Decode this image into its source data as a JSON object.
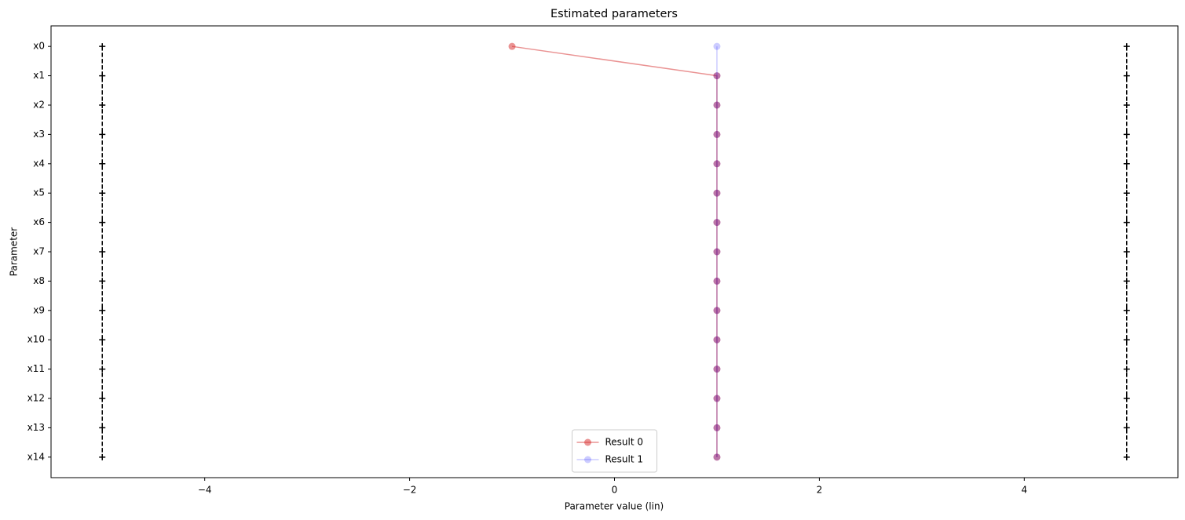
{
  "chart_data": {
    "type": "line",
    "orientation": "horizontal",
    "title": "Estimated parameters",
    "x_label": "Parameter value (lin)",
    "y_label": "Parameter",
    "categories": [
      "x0",
      "x1",
      "x2",
      "x3",
      "x4",
      "x5",
      "x6",
      "x7",
      "x8",
      "x9",
      "x10",
      "x11",
      "x12",
      "x13",
      "x14"
    ],
    "series": [
      {
        "name": "Result 0",
        "color": "#d62728",
        "alpha": 0.5,
        "values": [
          -1,
          1,
          1,
          1,
          1,
          1,
          1,
          1,
          1,
          1,
          1,
          1,
          1,
          1,
          1
        ]
      },
      {
        "name": "Result 1",
        "color": "#0000ff",
        "alpha": 0.2,
        "values": [
          1,
          1,
          1,
          1,
          1,
          1,
          1,
          1,
          1,
          1,
          1,
          1,
          1,
          1,
          1
        ]
      }
    ],
    "bounds_lower": [
      -5,
      -5,
      -5,
      -5,
      -5,
      -5,
      -5,
      -5,
      -5,
      -5,
      -5,
      -5,
      -5,
      -5,
      -5
    ],
    "bounds_upper": [
      5,
      5,
      5,
      5,
      5,
      5,
      5,
      5,
      5,
      5,
      5,
      5,
      5,
      5,
      5
    ],
    "bounds_color": "#000000",
    "xlim": [
      -5.5,
      5.5
    ],
    "xticks": [
      {
        "value": -4,
        "label": "−4"
      },
      {
        "value": -2,
        "label": "−2"
      },
      0,
      2,
      4
    ],
    "y_inverted": true,
    "grid": false,
    "legend": "lower center"
  }
}
